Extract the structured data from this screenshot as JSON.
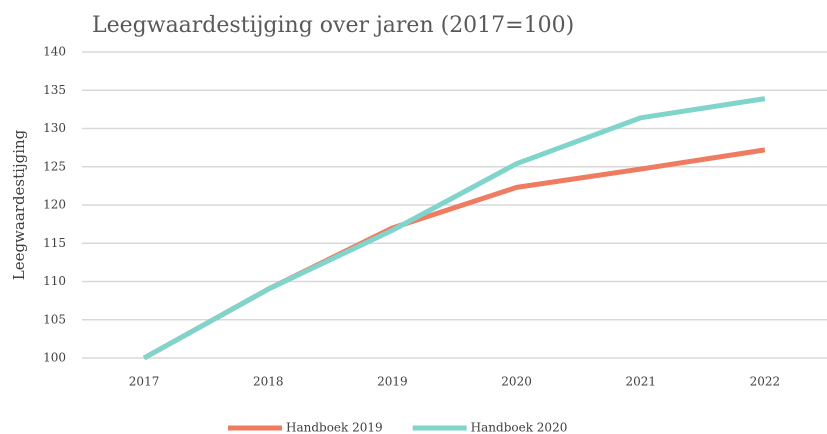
{
  "chart_data": {
    "type": "line",
    "title": "Leegwaardestijging over jaren (2017=100)",
    "y_label": "Leegwaardestijging",
    "categories": [
      "2017",
      "2018",
      "2019",
      "2020",
      "2021",
      "2022"
    ],
    "series": [
      {
        "name": "Handboek 2019",
        "color": "#ef7b61",
        "values": [
          100,
          109,
          117,
          122.3,
          124.7,
          127.2
        ]
      },
      {
        "name": "Handboek 2020",
        "color": "#7fd4cc",
        "values": [
          100,
          109,
          116.7,
          125.4,
          131.4,
          133.9
        ]
      }
    ],
    "ylim": [
      100,
      140
    ],
    "yticks": [
      100,
      105,
      110,
      115,
      120,
      125,
      130,
      135,
      140
    ],
    "grid": true,
    "legend": "bottom"
  }
}
